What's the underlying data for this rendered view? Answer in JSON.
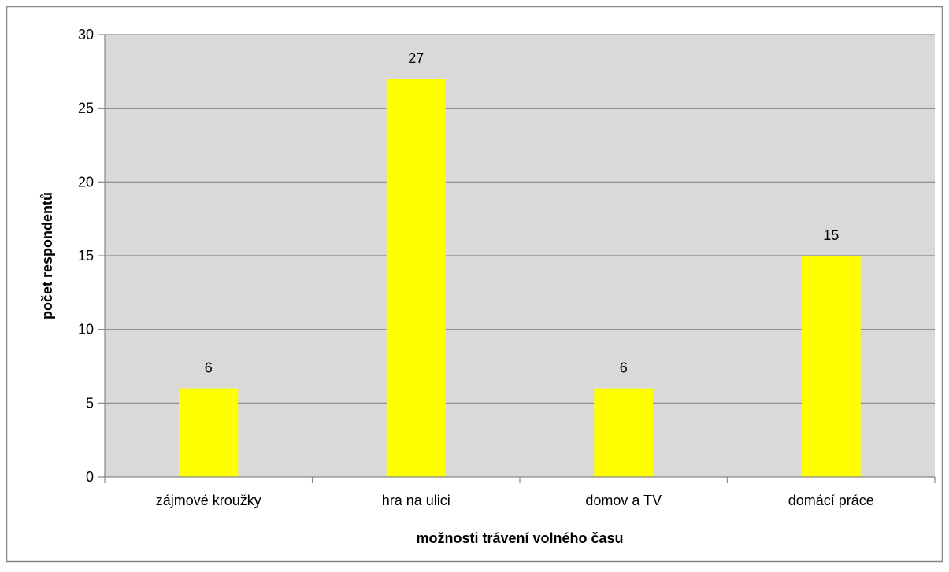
{
  "chart_data": {
    "type": "bar",
    "title": "",
    "xlabel": "možnosti trávení volného času",
    "ylabel": "počet respondentů",
    "categories": [
      "zájmové kroužky",
      "hra na ulici",
      "domov a TV",
      "domácí práce"
    ],
    "values": [
      6,
      27,
      6,
      15
    ],
    "data_labels": [
      "6",
      "27",
      "6",
      "15"
    ],
    "ylim": [
      0,
      30
    ],
    "yticks": [
      0,
      5,
      10,
      15,
      20,
      25,
      30
    ],
    "ytick_labels": [
      "0",
      "5",
      "10",
      "15",
      "20",
      "25",
      "30"
    ],
    "grid": true,
    "legend": "none",
    "colors": {
      "bar": "#ffff00",
      "plot_background": "#d9d9d9",
      "gridline": "#868686",
      "axis": "#868686",
      "frame": "#868686"
    }
  }
}
